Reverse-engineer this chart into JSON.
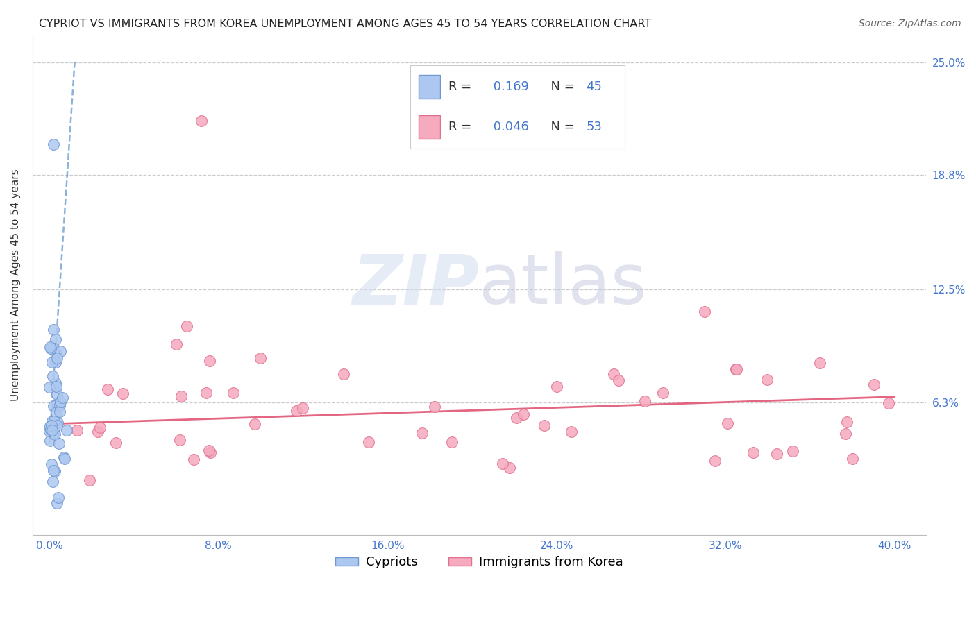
{
  "title": "CYPRIOT VS IMMIGRANTS FROM KOREA UNEMPLOYMENT AMONG AGES 45 TO 54 YEARS CORRELATION CHART",
  "source": "Source: ZipAtlas.com",
  "xlabel_ticks": [
    "0.0%",
    "8.0%",
    "16.0%",
    "24.0%",
    "32.0%",
    "40.0%"
  ],
  "xlabel_vals": [
    0.0,
    0.08,
    0.16,
    0.24,
    0.32,
    0.4
  ],
  "ylabel_ticks": [
    "6.3%",
    "12.5%",
    "18.8%",
    "25.0%"
  ],
  "ylabel_vals": [
    0.063,
    0.125,
    0.188,
    0.25
  ],
  "ylabel_label": "Unemployment Among Ages 45 to 54 years",
  "legend_bottom": [
    "Cypriots",
    "Immigrants from Korea"
  ],
  "cypriot_color": "#adc8f0",
  "korea_color": "#f5aabe",
  "cypriot_edge": "#7098d0",
  "korea_edge": "#e07090",
  "trendline_cypriot_color": "#6699cc",
  "trendline_korea_color": "#e05575",
  "R_cypriot": 0.169,
  "N_cypriot": 45,
  "R_korea": 0.046,
  "N_korea": 53,
  "watermark_zip": "ZIP",
  "watermark_atlas": "atlas",
  "background_color": "#ffffff",
  "grid_color": "#cccccc",
  "tick_color": "#4477cc",
  "title_fontsize": 11.5,
  "axis_label_fontsize": 11,
  "legend_fontsize": 13,
  "tick_fontsize": 11,
  "source_fontsize": 10
}
